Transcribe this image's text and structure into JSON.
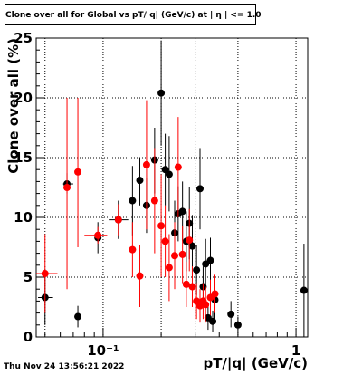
{
  "title": "Clone  over all for Global vs pT/|q| (GeV/c) at | η | <= 1.0",
  "timestamp": "Thu Nov 24 13:56:21 2022",
  "chart_data": {
    "type": "scatter",
    "xlabel": "pT/|q| (GeV/c)",
    "ylabel": "Clone  over all (%)",
    "xscale": "log",
    "xlim": [
      0.045,
      1.15
    ],
    "ylim": [
      0,
      25
    ],
    "yticks": [
      0,
      5,
      10,
      15,
      20,
      25
    ],
    "xtick_labels": [
      {
        "value": 0.1,
        "label": "10⁻¹"
      },
      {
        "value": 1,
        "label": "1"
      }
    ],
    "grid": true,
    "series": [
      {
        "color": "#000000",
        "points": [
          {
            "x": 0.05,
            "y": 3.3,
            "ylo": 1.0,
            "yhi": 5.6,
            "xlo": 0.046,
            "xhi": 0.055
          },
          {
            "x": 0.065,
            "y": 12.8,
            "ylo": 12.0,
            "yhi": 13.7,
            "xlo": 0.062,
            "xhi": 0.07
          },
          {
            "x": 0.074,
            "y": 1.7,
            "ylo": 0.8,
            "yhi": 2.6
          },
          {
            "x": 0.094,
            "y": 8.3,
            "ylo": 7.0,
            "yhi": 9.6
          },
          {
            "x": 0.12,
            "y": 9.8,
            "ylo": 8.2,
            "yhi": 11.4,
            "xlo": 0.107,
            "xhi": 0.135
          },
          {
            "x": 0.142,
            "y": 11.4,
            "ylo": 8.5,
            "yhi": 14.3
          },
          {
            "x": 0.155,
            "y": 13.1,
            "ylo": 11.0,
            "yhi": 15.0
          },
          {
            "x": 0.168,
            "y": 11.0,
            "ylo": 8.7,
            "yhi": 13.3
          },
          {
            "x": 0.185,
            "y": 14.8,
            "ylo": 12.0,
            "yhi": 17.5
          },
          {
            "x": 0.2,
            "y": 20.4,
            "ylo": 16.0,
            "yhi": 24.8
          },
          {
            "x": 0.21,
            "y": 14.0,
            "ylo": 11.0,
            "yhi": 17.0
          },
          {
            "x": 0.22,
            "y": 13.6,
            "ylo": 10.5,
            "yhi": 16.8
          },
          {
            "x": 0.235,
            "y": 8.7,
            "ylo": 6.0,
            "yhi": 11.4
          },
          {
            "x": 0.245,
            "y": 10.3,
            "ylo": 8.0,
            "yhi": 12.6
          },
          {
            "x": 0.258,
            "y": 10.5,
            "ylo": 8.0,
            "yhi": 13.0
          },
          {
            "x": 0.27,
            "y": 8.0,
            "ylo": 5.5,
            "yhi": 10.5
          },
          {
            "x": 0.28,
            "y": 9.5,
            "ylo": 6.5,
            "yhi": 12.5
          },
          {
            "x": 0.29,
            "y": 7.6,
            "ylo": 5.0,
            "yhi": 10.2
          },
          {
            "x": 0.305,
            "y": 5.6,
            "ylo": 3.5,
            "yhi": 7.7
          },
          {
            "x": 0.318,
            "y": 12.4,
            "ylo": 9.0,
            "yhi": 15.8
          },
          {
            "x": 0.33,
            "y": 4.2,
            "ylo": 2.5,
            "yhi": 5.9
          },
          {
            "x": 0.34,
            "y": 6.1,
            "ylo": 4.0,
            "yhi": 8.2
          },
          {
            "x": 0.35,
            "y": 1.6,
            "ylo": 0.6,
            "yhi": 2.6
          },
          {
            "x": 0.36,
            "y": 6.4,
            "ylo": 4.5,
            "yhi": 8.3
          },
          {
            "x": 0.37,
            "y": 1.3,
            "ylo": 0.4,
            "yhi": 2.2
          },
          {
            "x": 0.38,
            "y": 3.1,
            "ylo": 1.5,
            "yhi": 4.7
          },
          {
            "x": 0.46,
            "y": 1.9,
            "ylo": 0.8,
            "yhi": 3.0
          },
          {
            "x": 0.5,
            "y": 1.0,
            "ylo": 0.3,
            "yhi": 1.7
          },
          {
            "x": 1.1,
            "y": 3.9,
            "ylo": 0.0,
            "yhi": 7.8
          }
        ]
      },
      {
        "color": "#ff0000",
        "points": [
          {
            "x": 0.05,
            "y": 5.3,
            "ylo": 2.0,
            "yhi": 8.6,
            "xlo": 0.045,
            "xhi": 0.058
          },
          {
            "x": 0.065,
            "y": 12.5,
            "ylo": 4.0,
            "yhi": 20.0
          },
          {
            "x": 0.074,
            "y": 13.8,
            "ylo": 7.5,
            "yhi": 20.0
          },
          {
            "x": 0.094,
            "y": 8.5,
            "ylo": 7.8,
            "yhi": 9.2,
            "xlo": 0.08,
            "xhi": 0.105
          },
          {
            "x": 0.12,
            "y": 9.8,
            "ylo": 8.5,
            "yhi": 11.1
          },
          {
            "x": 0.142,
            "y": 7.3,
            "ylo": 5.0,
            "yhi": 9.6
          },
          {
            "x": 0.155,
            "y": 5.1,
            "ylo": 2.5,
            "yhi": 7.7
          },
          {
            "x": 0.168,
            "y": 14.4,
            "ylo": 9.0,
            "yhi": 19.8
          },
          {
            "x": 0.185,
            "y": 11.4,
            "ylo": 7.0,
            "yhi": 15.8
          },
          {
            "x": 0.2,
            "y": 9.3,
            "ylo": 5.0,
            "yhi": 13.6
          },
          {
            "x": 0.21,
            "y": 8.0,
            "ylo": 5.0,
            "yhi": 11.0
          },
          {
            "x": 0.22,
            "y": 5.8,
            "ylo": 3.0,
            "yhi": 8.6
          },
          {
            "x": 0.235,
            "y": 6.8,
            "ylo": 4.0,
            "yhi": 9.6
          },
          {
            "x": 0.245,
            "y": 14.2,
            "ylo": 10.0,
            "yhi": 18.4
          },
          {
            "x": 0.258,
            "y": 6.9,
            "ylo": 4.5,
            "yhi": 9.3
          },
          {
            "x": 0.27,
            "y": 4.4,
            "ylo": 2.5,
            "yhi": 6.3
          },
          {
            "x": 0.28,
            "y": 8.1,
            "ylo": 5.5,
            "yhi": 10.7
          },
          {
            "x": 0.29,
            "y": 4.2,
            "ylo": 2.5,
            "yhi": 5.9
          },
          {
            "x": 0.305,
            "y": 3.0,
            "ylo": 1.5,
            "yhi": 4.5
          },
          {
            "x": 0.318,
            "y": 2.6,
            "ylo": 1.2,
            "yhi": 4.0
          },
          {
            "x": 0.33,
            "y": 3.0,
            "ylo": 1.5,
            "yhi": 4.5
          },
          {
            "x": 0.34,
            "y": 2.7,
            "ylo": 1.2,
            "yhi": 4.2
          },
          {
            "x": 0.36,
            "y": 3.3,
            "ylo": 1.8,
            "yhi": 4.8
          },
          {
            "x": 0.38,
            "y": 3.6,
            "ylo": 2.0,
            "yhi": 5.2
          }
        ]
      }
    ]
  }
}
